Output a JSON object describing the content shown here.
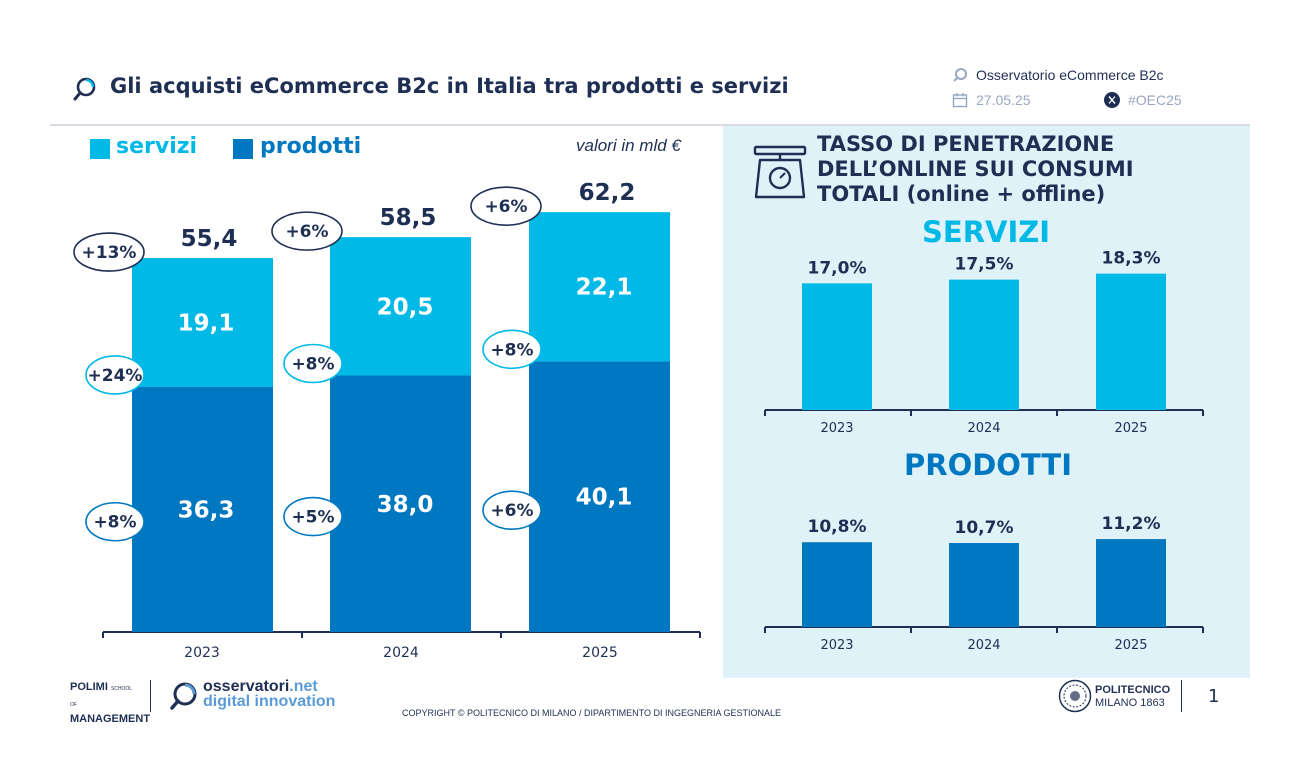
{
  "header": {
    "title": "Gli acquisti eCommerce B2c in Italia tra prodotti e servizi",
    "brand": "Osservatorio eCommerce B2c",
    "date": "27.05.25",
    "hashtag": "#OEC25"
  },
  "colors": {
    "servizi": "#00b9e6",
    "prodotti": "#0078c1",
    "dark": "#1f2f54",
    "panel": "#def2f8"
  },
  "chart_data": [
    {
      "type": "bar",
      "stacked": true,
      "units": "valori in mld €",
      "categories": [
        "2023",
        "2024",
        "2025"
      ],
      "series": [
        {
          "name": "prodotti",
          "values": [
            36.3,
            38.0,
            40.1
          ],
          "labels": [
            "36,3",
            "38,0",
            "40,1"
          ],
          "growth": [
            "+8%",
            "+5%",
            "+6%"
          ]
        },
        {
          "name": "servizi",
          "values": [
            19.1,
            20.5,
            22.1
          ],
          "labels": [
            "19,1",
            "20,5",
            "22,1"
          ],
          "growth": [
            "+24%",
            "+8%",
            "+8%"
          ]
        }
      ],
      "totals": {
        "values": [
          55.4,
          58.5,
          62.2
        ],
        "labels": [
          "55,4",
          "58,5",
          "62,2"
        ],
        "growth": [
          "+13%",
          "+6%",
          "+6%"
        ]
      },
      "legend": [
        "servizi",
        "prodotti"
      ],
      "legend_position": "top-left"
    },
    {
      "type": "bar",
      "title": "SERVIZI",
      "categories": [
        "2023",
        "2024",
        "2025"
      ],
      "values": [
        17.0,
        17.5,
        18.3
      ],
      "labels": [
        "17,0%",
        "17,5%",
        "18,3%"
      ]
    },
    {
      "type": "bar",
      "title": "PRODOTTI",
      "categories": [
        "2023",
        "2024",
        "2025"
      ],
      "values": [
        10.8,
        10.7,
        11.2
      ],
      "labels": [
        "10,8%",
        "10,7%",
        "11,2%"
      ]
    }
  ],
  "panel": {
    "title_line1": "TASSO DI PENETRAZIONE",
    "title_line2": "DELL’ONLINE SUI CONSUMI",
    "title_line3": "TOTALI (online + offline)"
  },
  "footer": {
    "copyright": "COPYRIGHT © POLITECNICO DI MILANO / DIPARTIMENTO DI INGEGNERIA GESTIONALE",
    "page": "1",
    "polimi_line1": "POLIMI",
    "polimi_school": "SCHOOL OF",
    "polimi_line2": "MANAGEMENT",
    "osserv_line1": "osservatori",
    "osserv_tld": ".net",
    "osserv_line2": "digital innovation",
    "politecnico_line1": "POLITECNICO",
    "politecnico_line2": "MILANO 1863"
  }
}
